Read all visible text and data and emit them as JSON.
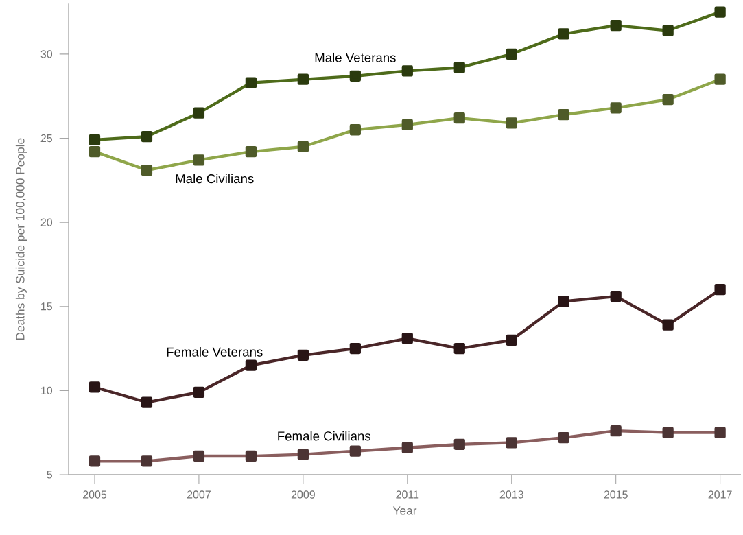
{
  "chart_data": {
    "type": "line",
    "xlabel": "Year",
    "ylabel": "Deaths by Suicide per 100,000 People",
    "x": [
      2005,
      2006,
      2007,
      2008,
      2009,
      2010,
      2011,
      2012,
      2013,
      2014,
      2015,
      2016,
      2017
    ],
    "series": [
      {
        "name": "Male Veterans",
        "color": "#4e6b1a",
        "values": [
          24.9,
          25.1,
          26.5,
          28.3,
          28.5,
          28.7,
          29.0,
          29.2,
          30.0,
          31.2,
          31.7,
          31.4,
          32.5
        ]
      },
      {
        "name": "Male Civilians",
        "color": "#8fa64a",
        "values": [
          24.2,
          23.1,
          23.7,
          24.2,
          24.5,
          25.5,
          25.8,
          26.2,
          25.9,
          26.4,
          26.8,
          27.3,
          28.5
        ]
      },
      {
        "name": "Female Veterans",
        "color": "#4a2628",
        "values": [
          10.2,
          9.3,
          9.9,
          11.5,
          12.1,
          12.5,
          13.1,
          12.5,
          13.0,
          15.3,
          15.6,
          13.9,
          16.0
        ]
      },
      {
        "name": "Female Civilians",
        "color": "#8a5e5e",
        "values": [
          5.8,
          5.8,
          6.1,
          6.1,
          6.2,
          6.4,
          6.6,
          6.8,
          6.9,
          7.2,
          7.6,
          7.5,
          7.5
        ]
      }
    ],
    "xlim": [
      2004.5,
      2017.4
    ],
    "ylim": [
      5,
      33
    ],
    "xticks": [
      2005,
      2007,
      2009,
      2011,
      2013,
      2015,
      2017
    ],
    "yticks": [
      5,
      10,
      15,
      20,
      25,
      30
    ],
    "marker": "square",
    "line_style": "solid",
    "legend": false,
    "grid": false
  }
}
